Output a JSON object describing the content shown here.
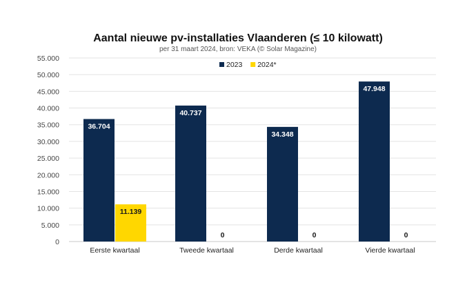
{
  "chart_data": {
    "type": "bar",
    "title": "Aantal nieuwe pv-installaties Vlaanderen (≤ 10 kilowatt)",
    "subtitle": "per 31 maart 2024, bron: VEKA (© Solar Magazine)",
    "categories": [
      "Eerste kwartaal",
      "Tweede kwartaal",
      "Derde kwartaal",
      "Vierde kwartaal"
    ],
    "series": [
      {
        "name": "2023",
        "color": "#0d2a4f",
        "values": [
          36704,
          40737,
          34348,
          47948
        ],
        "labels": [
          "36.704",
          "40.737",
          "34.348",
          "47.948"
        ]
      },
      {
        "name": "2024*",
        "color": "#ffd700",
        "values": [
          11139,
          0,
          0,
          0
        ],
        "labels": [
          "11.139",
          "0",
          "0",
          "0"
        ]
      }
    ],
    "ylim": [
      0,
      55000
    ],
    "yticks": [
      0,
      5000,
      10000,
      15000,
      20000,
      25000,
      30000,
      35000,
      40000,
      45000,
      50000,
      55000
    ],
    "ytick_labels": [
      "0",
      "5.000",
      "10.000",
      "15.000",
      "20.000",
      "25.000",
      "30.000",
      "35.000",
      "40.000",
      "45.000",
      "50.000",
      "55.000"
    ],
    "grid": true,
    "legend_position": "top-center",
    "xlabel": "",
    "ylabel": ""
  }
}
